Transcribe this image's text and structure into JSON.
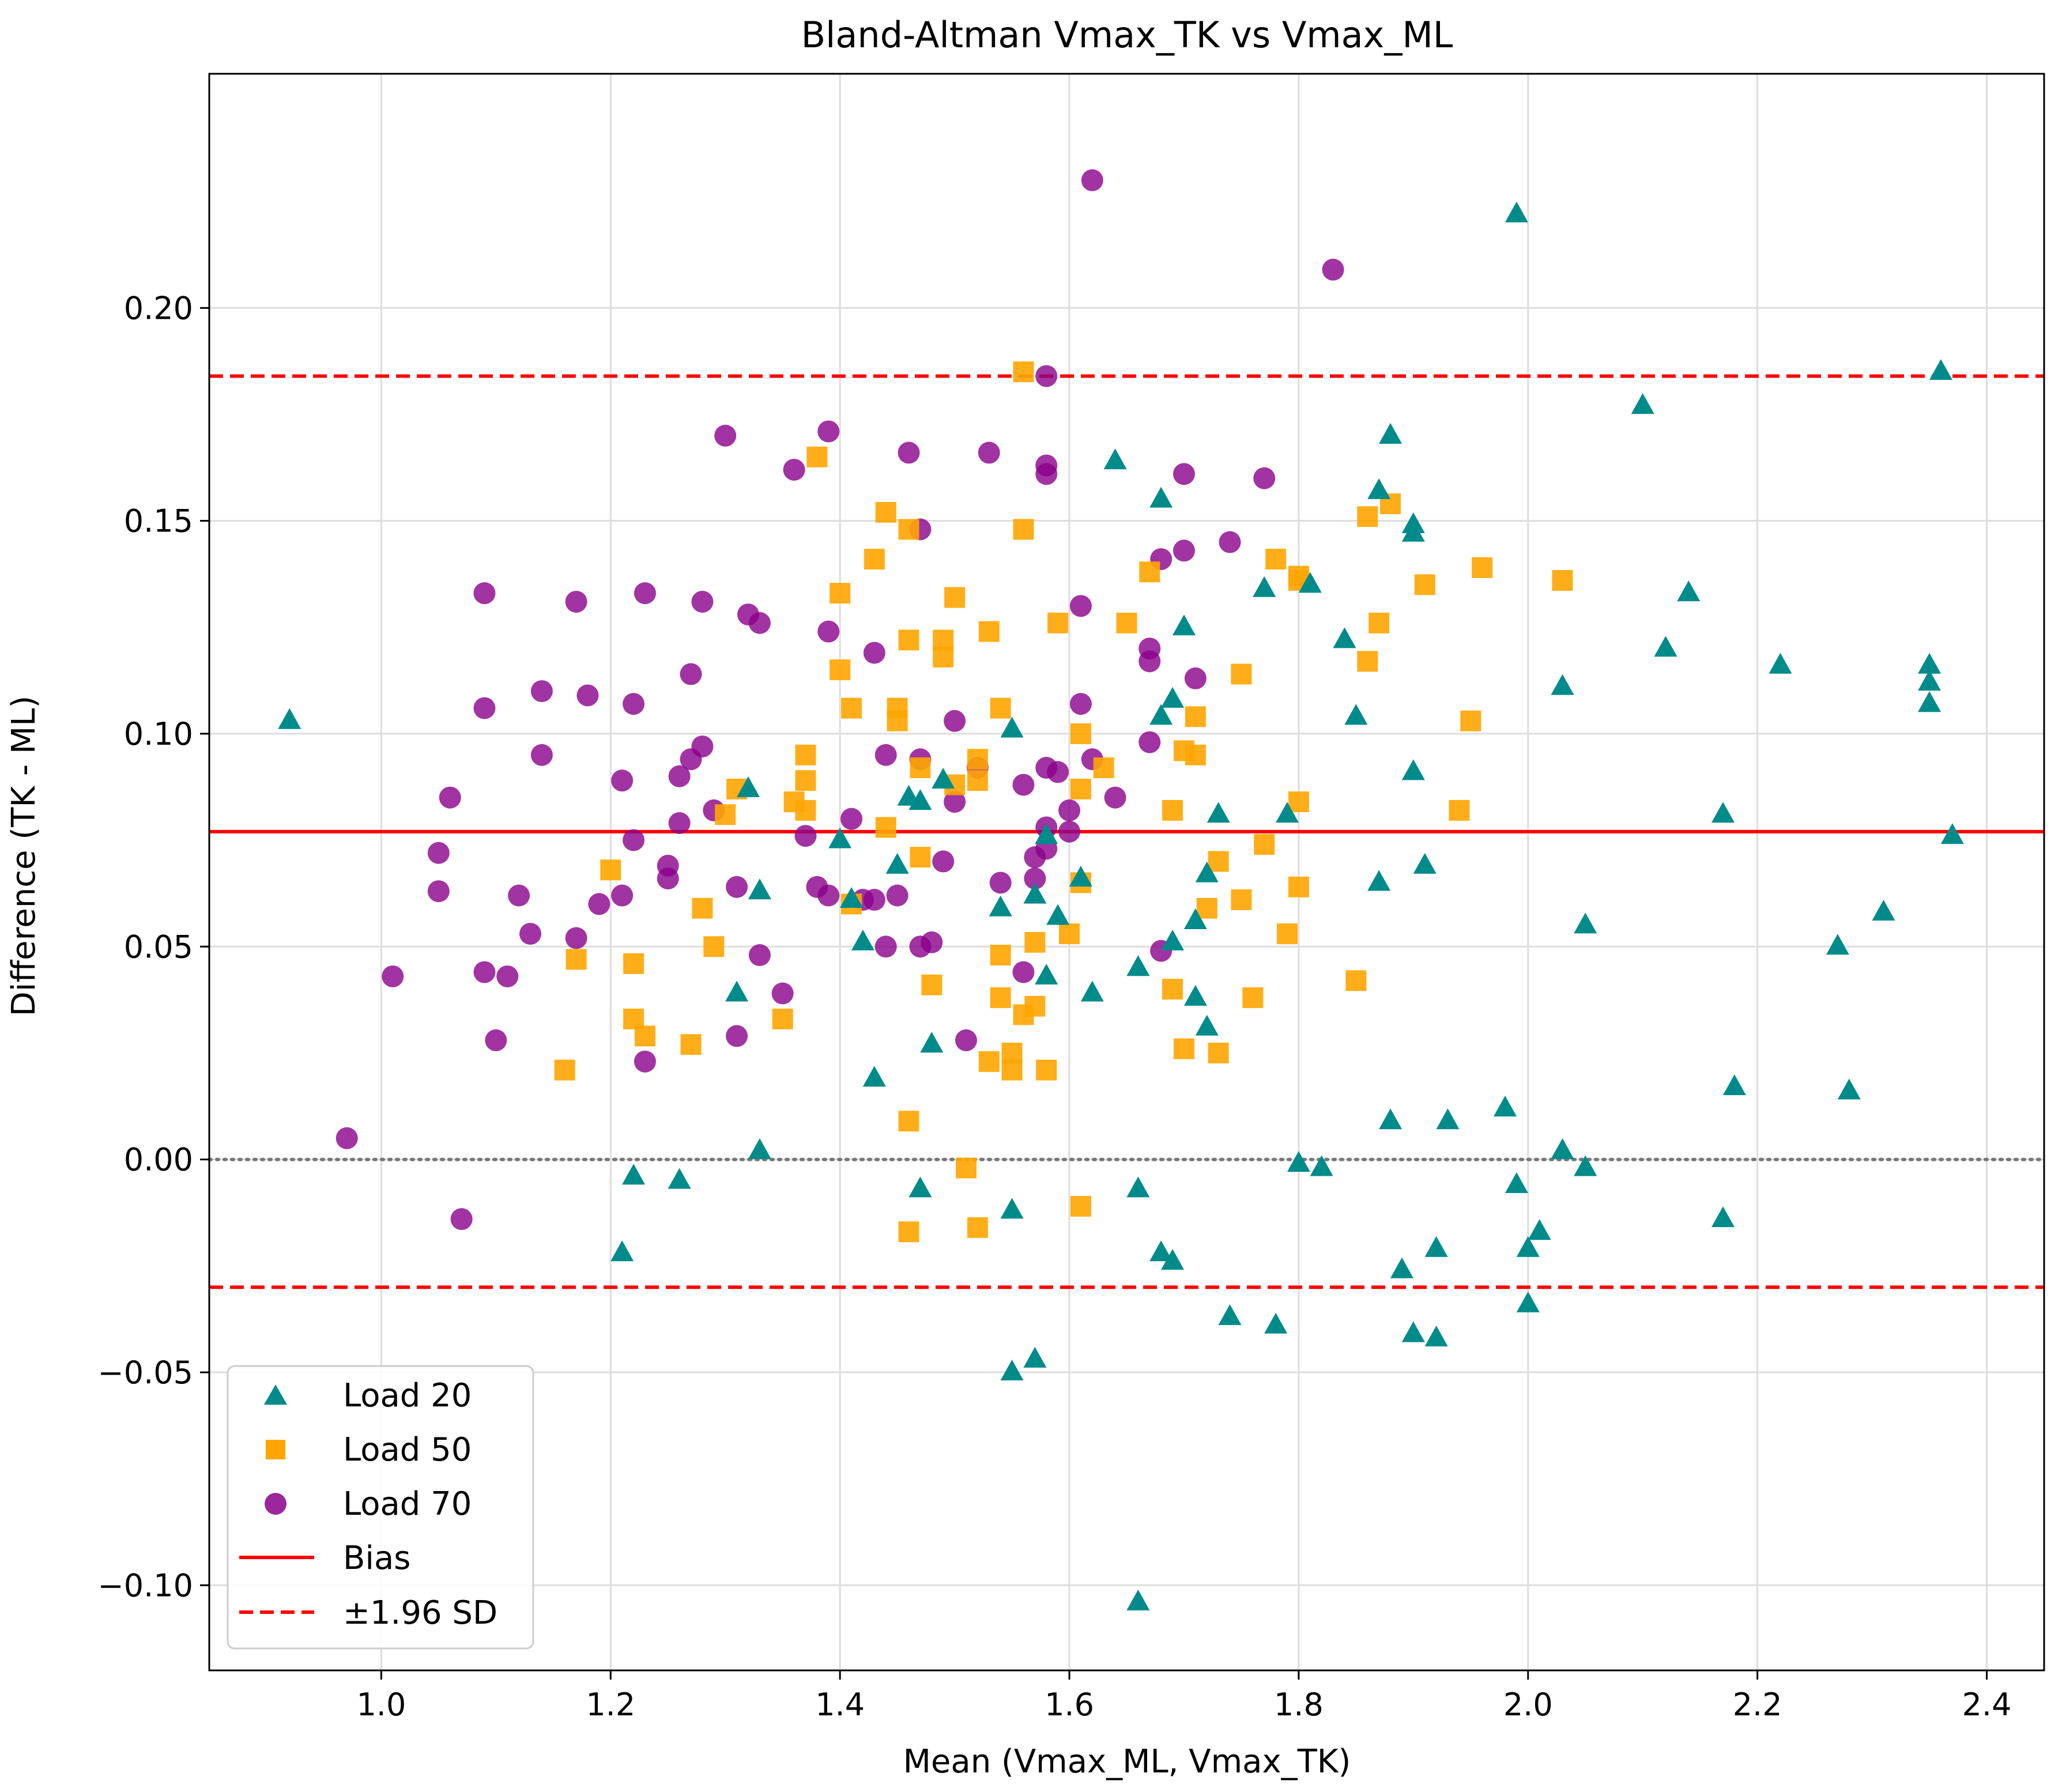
{
  "chart_data": {
    "type": "scatter",
    "title": "Bland-Altman Vmax_TK vs Vmax_ML",
    "xlabel": "Mean (Vmax_ML, Vmax_TK)",
    "ylabel": "Difference (TK - ML)",
    "xlim": [
      0.85,
      2.45
    ],
    "ylim": [
      -0.12,
      0.255
    ],
    "xticks": [
      1.0,
      1.2,
      1.4,
      1.6,
      1.8,
      2.0,
      2.2,
      2.4
    ],
    "xtick_labels": [
      "1.0",
      "1.2",
      "1.4",
      "1.6",
      "1.8",
      "2.0",
      "2.2",
      "2.4"
    ],
    "yticks": [
      -0.1,
      -0.05,
      0.0,
      0.05,
      0.1,
      0.15,
      0.2
    ],
    "ytick_labels": [
      "−0.10",
      "−0.05",
      "0.00",
      "0.05",
      "0.10",
      "0.15",
      "0.20"
    ],
    "grid": true,
    "legend_position": "bottom-left",
    "bias": 0.077,
    "upper_loa": 0.184,
    "lower_loa": -0.03,
    "zero_line": 0.0,
    "lines_legend": [
      {
        "name": "Bias",
        "color": "#ff0000",
        "style": "solid"
      },
      {
        "name": "±1.96 SD",
        "color": "#ff0000",
        "style": "dashed"
      }
    ],
    "series": [
      {
        "name": "Load 20",
        "marker": "triangle",
        "color": "#008b8b",
        "points": [
          [
            0.92,
            0.103
          ],
          [
            1.21,
            -0.022
          ],
          [
            1.22,
            -0.004
          ],
          [
            1.26,
            -0.005
          ],
          [
            1.31,
            0.039
          ],
          [
            1.32,
            0.087
          ],
          [
            1.33,
            0.063
          ],
          [
            1.33,
            0.002
          ],
          [
            1.4,
            0.075
          ],
          [
            1.41,
            0.061
          ],
          [
            1.42,
            0.051
          ],
          [
            1.43,
            0.019
          ],
          [
            1.45,
            0.069
          ],
          [
            1.46,
            0.085
          ],
          [
            1.47,
            0.084
          ],
          [
            1.47,
            -0.007
          ],
          [
            1.48,
            0.027
          ],
          [
            1.49,
            0.089
          ],
          [
            1.54,
            0.059
          ],
          [
            1.55,
            0.101
          ],
          [
            1.55,
            -0.012
          ],
          [
            1.55,
            -0.05
          ],
          [
            1.57,
            0.062
          ],
          [
            1.57,
            -0.047
          ],
          [
            1.58,
            0.076
          ],
          [
            1.58,
            0.043
          ],
          [
            1.59,
            0.057
          ],
          [
            1.61,
            0.066
          ],
          [
            1.62,
            0.039
          ],
          [
            1.64,
            0.164
          ],
          [
            1.66,
            -0.007
          ],
          [
            1.66,
            0.045
          ],
          [
            1.66,
            -0.104
          ],
          [
            1.68,
            0.155
          ],
          [
            1.68,
            0.104
          ],
          [
            1.68,
            -0.022
          ],
          [
            1.69,
            0.108
          ],
          [
            1.69,
            -0.024
          ],
          [
            1.69,
            0.051
          ],
          [
            1.7,
            0.125
          ],
          [
            1.71,
            0.056
          ],
          [
            1.71,
            0.038
          ],
          [
            1.72,
            0.031
          ],
          [
            1.72,
            0.067
          ],
          [
            1.73,
            0.081
          ],
          [
            1.74,
            -0.037
          ],
          [
            1.77,
            0.134
          ],
          [
            1.78,
            -0.039
          ],
          [
            1.79,
            0.081
          ],
          [
            1.8,
            -0.001
          ],
          [
            1.81,
            0.135
          ],
          [
            1.82,
            -0.002
          ],
          [
            1.84,
            0.122
          ],
          [
            1.85,
            0.104
          ],
          [
            1.87,
            0.157
          ],
          [
            1.87,
            0.065
          ],
          [
            1.88,
            0.17
          ],
          [
            1.88,
            0.009
          ],
          [
            1.89,
            -0.026
          ],
          [
            1.9,
            0.091
          ],
          [
            1.9,
            -0.041
          ],
          [
            1.9,
            0.149
          ],
          [
            1.9,
            0.147
          ],
          [
            1.91,
            0.069
          ],
          [
            1.92,
            -0.021
          ],
          [
            1.92,
            -0.042
          ],
          [
            1.93,
            0.009
          ],
          [
            1.98,
            0.012
          ],
          [
            1.99,
            -0.006
          ],
          [
            1.99,
            0.222
          ],
          [
            2.0,
            -0.034
          ],
          [
            2.0,
            -0.021
          ],
          [
            2.01,
            -0.017
          ],
          [
            2.03,
            0.002
          ],
          [
            2.03,
            0.111
          ],
          [
            2.05,
            -0.002
          ],
          [
            2.05,
            0.055
          ],
          [
            2.1,
            0.177
          ],
          [
            2.12,
            0.12
          ],
          [
            2.14,
            0.133
          ],
          [
            2.17,
            -0.014
          ],
          [
            2.17,
            0.081
          ],
          [
            2.18,
            0.017
          ],
          [
            2.22,
            0.116
          ],
          [
            2.27,
            0.05
          ],
          [
            2.28,
            0.016
          ],
          [
            2.31,
            0.058
          ],
          [
            2.35,
            0.112
          ],
          [
            2.35,
            0.107
          ],
          [
            2.35,
            0.116
          ],
          [
            2.36,
            0.185
          ],
          [
            2.37,
            0.076
          ]
        ]
      },
      {
        "name": "Load 50",
        "marker": "square",
        "color": "#ffa500",
        "points": [
          [
            1.16,
            0.021
          ],
          [
            1.17,
            0.047
          ],
          [
            1.2,
            0.068
          ],
          [
            1.22,
            0.033
          ],
          [
            1.22,
            0.046
          ],
          [
            1.23,
            0.029
          ],
          [
            1.27,
            0.027
          ],
          [
            1.28,
            0.059
          ],
          [
            1.29,
            0.05
          ],
          [
            1.3,
            0.081
          ],
          [
            1.31,
            0.087
          ],
          [
            1.35,
            0.033
          ],
          [
            1.36,
            0.084
          ],
          [
            1.37,
            0.089
          ],
          [
            1.37,
            0.082
          ],
          [
            1.37,
            0.095
          ],
          [
            1.38,
            0.165
          ],
          [
            1.4,
            0.115
          ],
          [
            1.4,
            0.133
          ],
          [
            1.41,
            0.106
          ],
          [
            1.41,
            0.06
          ],
          [
            1.43,
            0.141
          ],
          [
            1.44,
            0.152
          ],
          [
            1.44,
            0.078
          ],
          [
            1.45,
            0.103
          ],
          [
            1.45,
            0.106
          ],
          [
            1.46,
            0.148
          ],
          [
            1.46,
            0.122
          ],
          [
            1.46,
            0.009
          ],
          [
            1.46,
            -0.017
          ],
          [
            1.47,
            0.071
          ],
          [
            1.47,
            0.092
          ],
          [
            1.48,
            0.041
          ],
          [
            1.49,
            0.122
          ],
          [
            1.49,
            0.118
          ],
          [
            1.5,
            0.132
          ],
          [
            1.5,
            0.088
          ],
          [
            1.51,
            -0.002
          ],
          [
            1.52,
            0.094
          ],
          [
            1.52,
            0.089
          ],
          [
            1.52,
            -0.016
          ],
          [
            1.53,
            0.124
          ],
          [
            1.53,
            0.023
          ],
          [
            1.54,
            0.048
          ],
          [
            1.54,
            0.038
          ],
          [
            1.54,
            0.106
          ],
          [
            1.55,
            0.021
          ],
          [
            1.55,
            0.025
          ],
          [
            1.56,
            0.148
          ],
          [
            1.56,
            0.185
          ],
          [
            1.56,
            0.034
          ],
          [
            1.57,
            0.051
          ],
          [
            1.57,
            0.036
          ],
          [
            1.58,
            0.021
          ],
          [
            1.59,
            0.126
          ],
          [
            1.6,
            0.053
          ],
          [
            1.61,
            0.087
          ],
          [
            1.61,
            0.1
          ],
          [
            1.61,
            0.065
          ],
          [
            1.61,
            -0.011
          ],
          [
            1.63,
            0.092
          ],
          [
            1.65,
            0.126
          ],
          [
            1.67,
            0.138
          ],
          [
            1.69,
            0.082
          ],
          [
            1.69,
            0.04
          ],
          [
            1.7,
            0.096
          ],
          [
            1.7,
            0.026
          ],
          [
            1.71,
            0.104
          ],
          [
            1.71,
            0.095
          ],
          [
            1.72,
            0.059
          ],
          [
            1.73,
            0.07
          ],
          [
            1.73,
            0.025
          ],
          [
            1.75,
            0.061
          ],
          [
            1.75,
            0.114
          ],
          [
            1.76,
            0.038
          ],
          [
            1.77,
            0.074
          ],
          [
            1.78,
            0.141
          ],
          [
            1.79,
            0.053
          ],
          [
            1.8,
            0.136
          ],
          [
            1.8,
            0.137
          ],
          [
            1.8,
            0.084
          ],
          [
            1.8,
            0.064
          ],
          [
            1.85,
            0.042
          ],
          [
            1.86,
            0.151
          ],
          [
            1.86,
            0.117
          ],
          [
            1.87,
            0.126
          ],
          [
            1.88,
            0.154
          ],
          [
            1.91,
            0.135
          ],
          [
            1.94,
            0.082
          ],
          [
            1.95,
            0.103
          ],
          [
            1.96,
            0.139
          ],
          [
            2.03,
            0.136
          ]
        ]
      },
      {
        "name": "Load 70",
        "marker": "circle",
        "color": "#8b008b",
        "points": [
          [
            0.97,
            0.005
          ],
          [
            1.01,
            0.043
          ],
          [
            1.05,
            0.063
          ],
          [
            1.05,
            0.072
          ],
          [
            1.06,
            0.085
          ],
          [
            1.07,
            -0.014
          ],
          [
            1.09,
            0.044
          ],
          [
            1.09,
            0.133
          ],
          [
            1.09,
            0.106
          ],
          [
            1.1,
            0.028
          ],
          [
            1.11,
            0.043
          ],
          [
            1.12,
            0.062
          ],
          [
            1.13,
            0.053
          ],
          [
            1.14,
            0.11
          ],
          [
            1.14,
            0.095
          ],
          [
            1.17,
            0.052
          ],
          [
            1.17,
            0.131
          ],
          [
            1.18,
            0.109
          ],
          [
            1.19,
            0.06
          ],
          [
            1.21,
            0.089
          ],
          [
            1.21,
            0.062
          ],
          [
            1.22,
            0.107
          ],
          [
            1.22,
            0.075
          ],
          [
            1.23,
            0.023
          ],
          [
            1.23,
            0.133
          ],
          [
            1.25,
            0.069
          ],
          [
            1.25,
            0.066
          ],
          [
            1.26,
            0.079
          ],
          [
            1.26,
            0.09
          ],
          [
            1.27,
            0.094
          ],
          [
            1.27,
            0.114
          ],
          [
            1.28,
            0.131
          ],
          [
            1.28,
            0.097
          ],
          [
            1.29,
            0.082
          ],
          [
            1.3,
            0.17
          ],
          [
            1.31,
            0.029
          ],
          [
            1.31,
            0.064
          ],
          [
            1.32,
            0.128
          ],
          [
            1.33,
            0.126
          ],
          [
            1.33,
            0.048
          ],
          [
            1.35,
            0.039
          ],
          [
            1.36,
            0.162
          ],
          [
            1.37,
            0.076
          ],
          [
            1.38,
            0.064
          ],
          [
            1.39,
            0.062
          ],
          [
            1.39,
            0.171
          ],
          [
            1.39,
            0.124
          ],
          [
            1.41,
            0.08
          ],
          [
            1.42,
            0.061
          ],
          [
            1.43,
            0.119
          ],
          [
            1.43,
            0.061
          ],
          [
            1.44,
            0.095
          ],
          [
            1.44,
            0.05
          ],
          [
            1.45,
            0.062
          ],
          [
            1.46,
            0.166
          ],
          [
            1.47,
            0.094
          ],
          [
            1.47,
            0.05
          ],
          [
            1.47,
            0.148
          ],
          [
            1.48,
            0.051
          ],
          [
            1.49,
            0.07
          ],
          [
            1.5,
            0.084
          ],
          [
            1.5,
            0.103
          ],
          [
            1.51,
            0.028
          ],
          [
            1.52,
            0.092
          ],
          [
            1.53,
            0.166
          ],
          [
            1.54,
            0.065
          ],
          [
            1.56,
            0.088
          ],
          [
            1.56,
            0.044
          ],
          [
            1.57,
            0.071
          ],
          [
            1.57,
            0.066
          ],
          [
            1.58,
            0.078
          ],
          [
            1.58,
            0.073
          ],
          [
            1.58,
            0.092
          ],
          [
            1.58,
            0.161
          ],
          [
            1.58,
            0.163
          ],
          [
            1.58,
            0.184
          ],
          [
            1.59,
            0.091
          ],
          [
            1.6,
            0.077
          ],
          [
            1.6,
            0.082
          ],
          [
            1.61,
            0.13
          ],
          [
            1.61,
            0.107
          ],
          [
            1.62,
            0.094
          ],
          [
            1.62,
            0.23
          ],
          [
            1.64,
            0.085
          ],
          [
            1.67,
            0.12
          ],
          [
            1.67,
            0.098
          ],
          [
            1.67,
            0.117
          ],
          [
            1.68,
            0.141
          ],
          [
            1.68,
            0.049
          ],
          [
            1.7,
            0.143
          ],
          [
            1.7,
            0.161
          ],
          [
            1.71,
            0.113
          ],
          [
            1.74,
            0.145
          ],
          [
            1.77,
            0.16
          ],
          [
            1.83,
            0.209
          ]
        ]
      }
    ]
  }
}
